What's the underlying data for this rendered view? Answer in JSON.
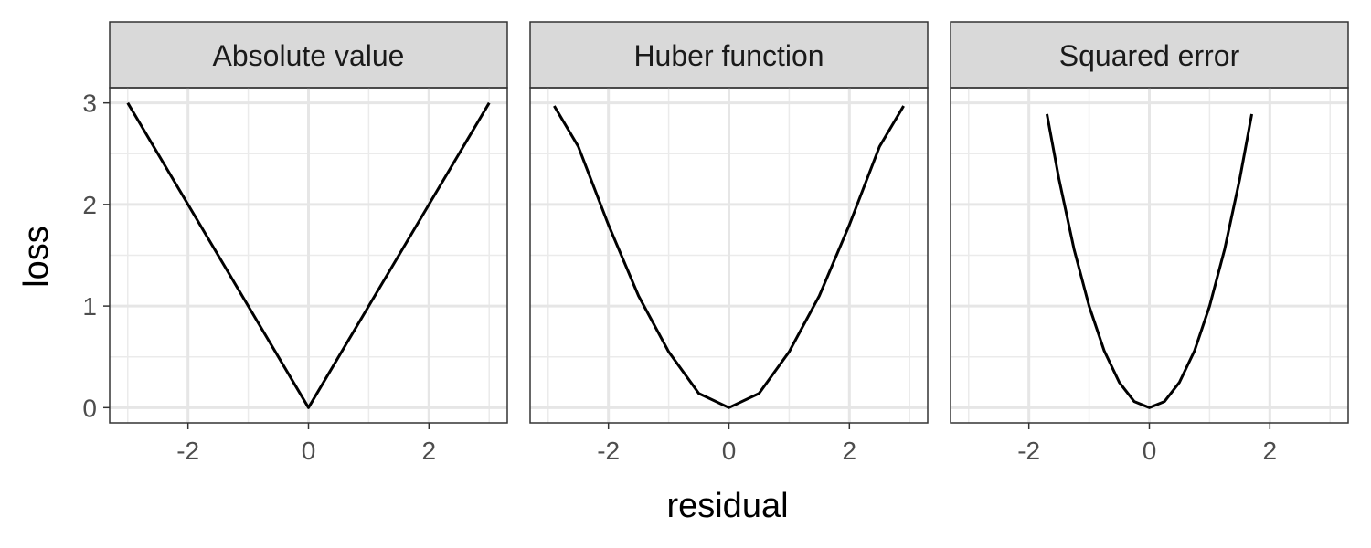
{
  "chart_data": {
    "type": "line",
    "xlabel": "residual",
    "ylabel": "loss",
    "xlim": [
      -3.3,
      3.3
    ],
    "ylim": [
      -0.15,
      3.15
    ],
    "x_ticks": [
      -2,
      0,
      2
    ],
    "x_tick_labels": [
      "-2",
      "0",
      "2"
    ],
    "y_ticks": [
      0,
      1,
      2,
      3
    ],
    "y_tick_labels": [
      "0",
      "1",
      "2",
      "3"
    ],
    "grid": true,
    "line_color": "#000000",
    "panels": [
      {
        "strip": "Absolute value",
        "points": [
          [
            -3.0,
            3.0
          ],
          [
            -2.0,
            2.0
          ],
          [
            -1.0,
            1.0
          ],
          [
            0.0,
            0.0
          ],
          [
            1.0,
            1.0
          ],
          [
            2.0,
            2.0
          ],
          [
            3.0,
            3.0
          ]
        ]
      },
      {
        "strip": "Huber function",
        "points": [
          [
            -2.9,
            2.97
          ],
          [
            -2.5,
            2.57
          ],
          [
            -2.0,
            1.8
          ],
          [
            -1.5,
            1.1
          ],
          [
            -1.0,
            0.55
          ],
          [
            -0.5,
            0.14
          ],
          [
            0.0,
            0.0
          ],
          [
            0.5,
            0.14
          ],
          [
            1.0,
            0.55
          ],
          [
            1.5,
            1.1
          ],
          [
            2.0,
            1.8
          ],
          [
            2.5,
            2.57
          ],
          [
            2.9,
            2.97
          ]
        ]
      },
      {
        "strip": "Squared error",
        "points": [
          [
            -1.7,
            2.89
          ],
          [
            -1.5,
            2.25
          ],
          [
            -1.25,
            1.56
          ],
          [
            -1.0,
            1.0
          ],
          [
            -0.75,
            0.56
          ],
          [
            -0.5,
            0.25
          ],
          [
            -0.25,
            0.06
          ],
          [
            0.0,
            0.0
          ],
          [
            0.25,
            0.06
          ],
          [
            0.5,
            0.25
          ],
          [
            0.75,
            0.56
          ],
          [
            1.0,
            1.0
          ],
          [
            1.25,
            1.56
          ],
          [
            1.5,
            2.25
          ],
          [
            1.7,
            2.89
          ]
        ]
      }
    ]
  }
}
